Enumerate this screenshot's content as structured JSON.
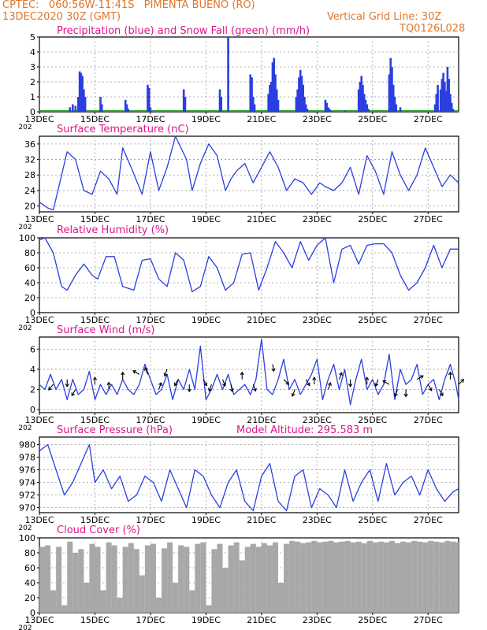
{
  "header": {
    "line1": "CPTEC:   060:56W-11:41S   PIMENTA BUENO (RO)",
    "line2": "13DEC2020 30Z (GMT)",
    "grid_note": "Vertical Grid Line: 30Z",
    "code": "TQ0126L028"
  },
  "colors": {
    "header": "#e0762a",
    "title": "#e0148c",
    "series": "#2a3fe0",
    "snow": "#1ea01e",
    "cloud": "#a8a8a8",
    "grid": "#9a9a9a"
  },
  "x_axis": {
    "tick_labels": [
      "13DEC",
      "15DEC",
      "17DEC",
      "19DEC",
      "21DEC",
      "23DEC",
      "25DEC",
      "27DEC"
    ],
    "tick_days": [
      0,
      2,
      4,
      6,
      8,
      10,
      12,
      14
    ],
    "year_stub": "202",
    "range_days": [
      0,
      15.1
    ]
  },
  "chart_data": [
    {
      "id": "precip",
      "type": "bar",
      "title": "Precipitation (blue) and Snow Fall (green) (mm/h)",
      "ylim": [
        0,
        5
      ],
      "yticks": [
        0,
        1,
        2,
        3,
        4,
        5
      ],
      "series": [
        {
          "name": "precipitation",
          "color": "#2a3fe0",
          "x": [
            1.1,
            1.2,
            1.3,
            1.4,
            1.45,
            1.5,
            1.55,
            1.6,
            1.65,
            2.2,
            2.25,
            3.1,
            3.15,
            3.2,
            3.9,
            3.95,
            4.0,
            5.2,
            5.25,
            6.5,
            6.55,
            6.8,
            7.6,
            7.65,
            7.7,
            7.75,
            8.25,
            8.3,
            8.35,
            8.4,
            8.45,
            8.5,
            8.55,
            8.6,
            9.25,
            9.3,
            9.35,
            9.4,
            9.45,
            9.5,
            9.55,
            9.6,
            9.65,
            10.3,
            10.35,
            10.4,
            10.45,
            10.5,
            11.0,
            11.5,
            11.55,
            11.6,
            11.65,
            11.7,
            11.75,
            11.8,
            11.85,
            12.6,
            12.65,
            12.7,
            12.75,
            12.8,
            12.85,
            13.0,
            14.25,
            14.3,
            14.35,
            14.45,
            14.5,
            14.55,
            14.6,
            14.65,
            14.7,
            14.75,
            14.8,
            14.85,
            14.9
          ],
          "values": [
            0.3,
            0.5,
            0.4,
            1.0,
            2.7,
            2.6,
            2.4,
            1.5,
            1.0,
            1.0,
            0.5,
            0.8,
            0.5,
            0.2,
            1.8,
            1.6,
            0.3,
            1.5,
            1.0,
            1.5,
            1.0,
            5.0,
            2.5,
            2.3,
            1.0,
            0.5,
            1.2,
            1.8,
            2.0,
            3.3,
            3.6,
            2.5,
            1.5,
            0.8,
            1.0,
            1.5,
            2.3,
            2.8,
            2.4,
            1.8,
            1.0,
            0.5,
            0.2,
            0.8,
            0.6,
            0.3,
            0.2,
            0.1,
            0.1,
            1.5,
            2.0,
            2.4,
            1.8,
            1.2,
            0.8,
            0.5,
            0.2,
            2.5,
            3.6,
            3.0,
            1.8,
            1.0,
            0.5,
            0.3,
            0.5,
            1.2,
            1.8,
            1.5,
            2.2,
            2.6,
            2.0,
            1.4,
            3.0,
            2.2,
            1.2,
            0.6,
            0.2
          ]
        },
        {
          "name": "snow fall",
          "color": "#1ea01e",
          "values": [
            0
          ]
        }
      ]
    },
    {
      "id": "temp",
      "type": "line",
      "title": "Surface Temperature (nC)",
      "ylim": [
        18.5,
        38
      ],
      "yticks": [
        20,
        24,
        28,
        32,
        36
      ],
      "series": [
        {
          "name": "temperature",
          "color": "#2a3fe0",
          "x": [
            0,
            0.3,
            0.5,
            0.7,
            1.0,
            1.3,
            1.6,
            1.9,
            2.2,
            2.5,
            2.8,
            3.0,
            3.3,
            3.7,
            4.0,
            4.3,
            4.6,
            4.9,
            5.3,
            5.5,
            5.8,
            6.1,
            6.4,
            6.7,
            6.9,
            7.1,
            7.4,
            7.7,
            8.0,
            8.3,
            8.6,
            8.9,
            9.2,
            9.5,
            9.8,
            10.1,
            10.3,
            10.6,
            10.9,
            11.2,
            11.5,
            11.8,
            12.1,
            12.4,
            12.7,
            13.0,
            13.3,
            13.6,
            13.9,
            14.2,
            14.5,
            14.8,
            15.1
          ],
          "values": [
            21,
            19.5,
            19,
            25,
            34,
            32,
            24,
            23,
            29,
            27,
            23,
            35,
            30,
            23,
            34,
            24,
            30,
            38,
            32,
            24,
            31,
            36,
            33,
            24,
            27,
            29,
            31,
            26,
            30,
            34,
            30,
            24,
            27,
            26,
            23,
            26,
            25,
            24,
            26,
            30,
            23,
            33,
            29,
            23,
            34,
            28,
            24,
            28,
            35,
            30,
            25,
            28,
            26
          ]
        }
      ]
    },
    {
      "id": "rh",
      "type": "line",
      "title": "Relative Humidity (%)",
      "ylim": [
        0,
        100
      ],
      "yticks": [
        0,
        20,
        40,
        60,
        80,
        100
      ],
      "series": [
        {
          "name": "relative humidity",
          "color": "#2a3fe0",
          "x": [
            0,
            0.2,
            0.5,
            0.8,
            1.0,
            1.3,
            1.6,
            1.9,
            2.1,
            2.4,
            2.7,
            3.0,
            3.4,
            3.7,
            4.0,
            4.3,
            4.6,
            4.9,
            5.2,
            5.5,
            5.8,
            6.1,
            6.4,
            6.7,
            7.0,
            7.3,
            7.6,
            7.9,
            8.2,
            8.5,
            8.8,
            9.1,
            9.4,
            9.7,
            10.0,
            10.3,
            10.6,
            10.9,
            11.2,
            11.5,
            11.8,
            12.1,
            12.4,
            12.7,
            13.0,
            13.3,
            13.6,
            13.9,
            14.2,
            14.5,
            14.8,
            15.1
          ],
          "values": [
            97,
            100,
            80,
            35,
            30,
            50,
            65,
            50,
            45,
            75,
            75,
            35,
            30,
            70,
            72,
            45,
            35,
            80,
            70,
            28,
            35,
            75,
            60,
            30,
            40,
            78,
            80,
            30,
            60,
            95,
            80,
            60,
            95,
            70,
            90,
            100,
            40,
            85,
            90,
            65,
            90,
            92,
            92,
            80,
            50,
            30,
            40,
            60,
            90,
            60,
            85,
            85
          ]
        }
      ]
    },
    {
      "id": "wind",
      "type": "line",
      "title": "Surface Wind (m/s)",
      "ylim": [
        -0.3,
        7.2
      ],
      "yticks": [
        0,
        2,
        4,
        6
      ],
      "series": [
        {
          "name": "wind speed",
          "color": "#2a3fe0",
          "x": [
            0,
            0.2,
            0.4,
            0.6,
            0.8,
            1.0,
            1.2,
            1.4,
            1.6,
            1.8,
            2.0,
            2.2,
            2.4,
            2.6,
            2.8,
            3.0,
            3.2,
            3.4,
            3.6,
            3.8,
            4.0,
            4.2,
            4.4,
            4.6,
            4.8,
            5.0,
            5.2,
            5.4,
            5.6,
            5.8,
            6.0,
            6.2,
            6.4,
            6.6,
            6.8,
            7.0,
            7.2,
            7.4,
            7.6,
            7.8,
            8.0,
            8.2,
            8.4,
            8.6,
            8.8,
            9.0,
            9.2,
            9.4,
            9.6,
            9.8,
            10.0,
            10.2,
            10.4,
            10.6,
            10.8,
            11.0,
            11.2,
            11.4,
            11.6,
            11.8,
            12.0,
            12.2,
            12.4,
            12.6,
            12.8,
            13.0,
            13.2,
            13.4,
            13.6,
            13.8,
            14.0,
            14.2,
            14.4,
            14.6,
            14.8,
            15.0,
            15.1
          ],
          "values": [
            2.5,
            2,
            3.5,
            2,
            3,
            1,
            3,
            1.5,
            2,
            3.8,
            1,
            2.5,
            1.5,
            2.5,
            1.5,
            3,
            2,
            1.5,
            2.5,
            4.5,
            3,
            1.5,
            2,
            3.5,
            1,
            3,
            2,
            4,
            2,
            6.3,
            1,
            2,
            3.5,
            2,
            3.5,
            1.5,
            2,
            2.5,
            1.5,
            3,
            7,
            2,
            1.5,
            3,
            5,
            2,
            3,
            1.5,
            2.5,
            3.5,
            5,
            1,
            3,
            4.5,
            2,
            4,
            0.5,
            3,
            5,
            2,
            3,
            1.5,
            2.5,
            5.5,
            1,
            4,
            2.5,
            3,
            4.5,
            1.5,
            2.5,
            3,
            1,
            3,
            4.5,
            2.5,
            1
          ]
        }
      ],
      "arrows": {
        "x": [
          0.5,
          1.0,
          1.3,
          2.0,
          2.5,
          3.0,
          3.6,
          3.9,
          4.3,
          4.6,
          5.0,
          5.4,
          5.9,
          6.2,
          6.6,
          6.9,
          7.3,
          7.7,
          8.4,
          8.8,
          9.2,
          9.6,
          9.9,
          10.4,
          10.8,
          11.2,
          11.8,
          12.2,
          12.6,
          12.9,
          13.2,
          13.6,
          14.0,
          14.4,
          14.8,
          15.1
        ],
        "speed": [
          2.5,
          3,
          2,
          2.5,
          2,
          3,
          3.5,
          3.5,
          2,
          4,
          3,
          2.5,
          3,
          2.5,
          3,
          2.5,
          3,
          2.5,
          4.5,
          3,
          2,
          3,
          2.5,
          2,
          3,
          3,
          2.5,
          3,
          2.5,
          2,
          2,
          3,
          2.5,
          2,
          3,
          2.5
        ],
        "dir_deg": [
          220,
          180,
          210,
          0,
          0,
          0,
          300,
          340,
          20,
          200,
          210,
          180,
          150,
          200,
          160,
          170,
          0,
          160,
          170,
          135,
          200,
          150,
          0,
          20,
          20,
          180,
          0,
          200,
          300,
          200,
          180,
          60,
          150,
          150,
          0,
          45
        ]
      }
    },
    {
      "id": "pres",
      "type": "line",
      "title": "Surface Pressure (hPa)",
      "annotation": "Model Altitude: 295.583 m",
      "ylim": [
        969.2,
        981.2
      ],
      "yticks": [
        970,
        972,
        974,
        976,
        978,
        980
      ],
      "series": [
        {
          "name": "pressure",
          "color": "#2a3fe0",
          "x": [
            0,
            0.3,
            0.6,
            0.9,
            1.2,
            1.5,
            1.8,
            2.0,
            2.3,
            2.6,
            2.9,
            3.2,
            3.5,
            3.8,
            4.1,
            4.4,
            4.7,
            5.0,
            5.3,
            5.6,
            5.9,
            6.2,
            6.5,
            6.8,
            7.1,
            7.4,
            7.7,
            8.0,
            8.3,
            8.6,
            8.9,
            9.2,
            9.5,
            9.8,
            10.1,
            10.4,
            10.7,
            11.0,
            11.3,
            11.6,
            11.9,
            12.2,
            12.5,
            12.8,
            13.1,
            13.4,
            13.7,
            14.0,
            14.3,
            14.6,
            14.9,
            15.1
          ],
          "values": [
            979,
            980,
            976,
            972,
            974,
            977,
            980,
            974,
            976,
            973,
            975,
            971,
            972,
            975,
            974,
            971,
            976,
            973,
            970,
            976,
            975,
            972,
            970,
            974,
            976,
            971,
            969.5,
            975,
            977,
            971,
            969.5,
            975,
            976,
            970,
            973,
            972,
            970,
            976,
            971,
            974,
            976,
            971,
            977,
            972,
            974,
            975,
            972,
            976,
            973,
            971,
            972.5,
            973
          ]
        }
      ]
    },
    {
      "id": "cloud",
      "type": "area",
      "title": "Cloud Cover (%)",
      "ylim": [
        0,
        100
      ],
      "yticks": [
        0,
        20,
        40,
        60,
        80,
        100
      ],
      "series": [
        {
          "name": "cloud cover",
          "color": "#a8a8a8",
          "x": [
            0,
            0.2,
            0.4,
            0.6,
            0.8,
            1.0,
            1.2,
            1.4,
            1.6,
            1.8,
            2.0,
            2.2,
            2.4,
            2.6,
            2.8,
            3.0,
            3.2,
            3.4,
            3.6,
            3.8,
            4.0,
            4.2,
            4.4,
            4.6,
            4.8,
            5.0,
            5.2,
            5.4,
            5.6,
            5.8,
            6.0,
            6.2,
            6.4,
            6.6,
            6.8,
            7.0,
            7.2,
            7.4,
            7.6,
            7.8,
            8.0,
            8.2,
            8.4,
            8.6,
            8.8,
            9.0,
            9.2,
            9.4,
            9.6,
            9.8,
            10.0,
            10.2,
            10.4,
            10.6,
            10.8,
            11.0,
            11.2,
            11.4,
            11.6,
            11.8,
            12.0,
            12.2,
            12.4,
            12.6,
            12.8,
            13.0,
            13.2,
            13.4,
            13.6,
            13.8,
            14.0,
            14.2,
            14.4,
            14.6,
            14.8,
            15.0
          ],
          "values": [
            88,
            90,
            30,
            88,
            10,
            95,
            80,
            85,
            40,
            92,
            88,
            30,
            94,
            90,
            20,
            88,
            93,
            85,
            50,
            90,
            92,
            20,
            86,
            94,
            40,
            90,
            88,
            30,
            92,
            94,
            10,
            85,
            92,
            60,
            90,
            94,
            70,
            88,
            92,
            88,
            93,
            90,
            94,
            40,
            92,
            96,
            95,
            93,
            94,
            96,
            94,
            95,
            96,
            94,
            95,
            96,
            94,
            95,
            93,
            96,
            94,
            95,
            94,
            96,
            93,
            95,
            94,
            96,
            95,
            94,
            96,
            95,
            94,
            96,
            95,
            94
          ]
        }
      ]
    }
  ]
}
